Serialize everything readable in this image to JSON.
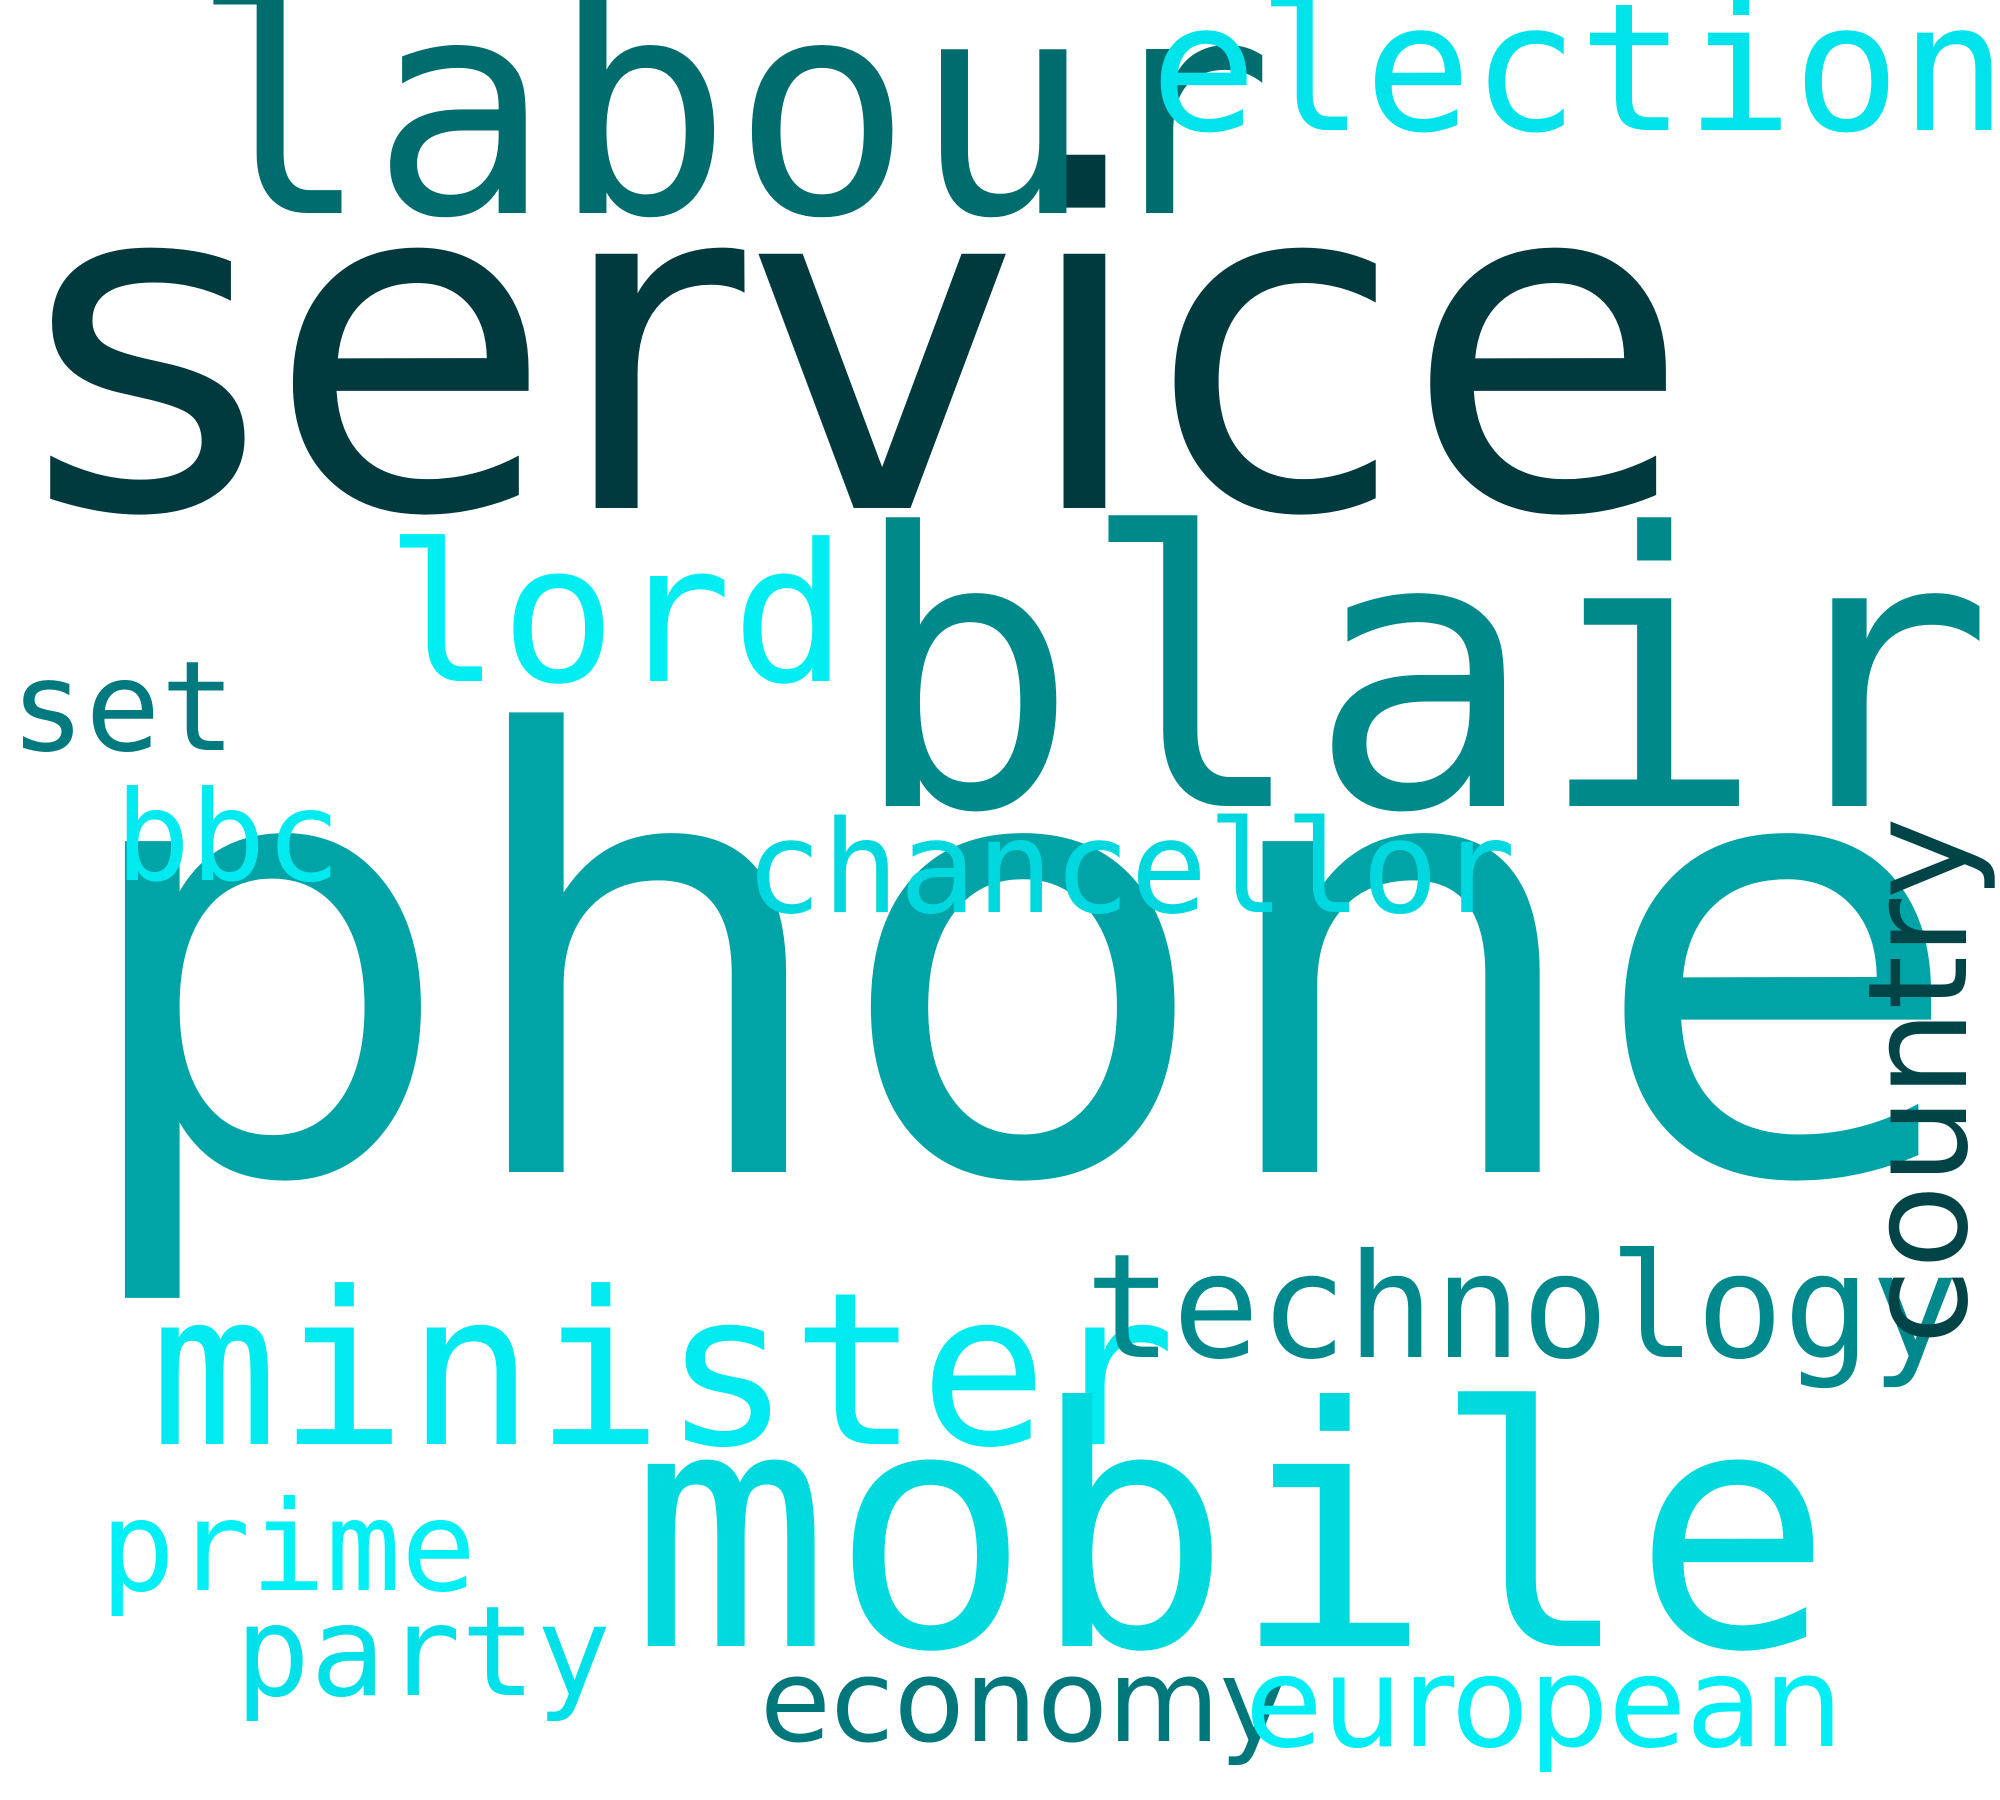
{
  "background": "#ffffff",
  "words": {
    "service": {
      "text": "service",
      "color": "#003a3e"
    },
    "phone": {
      "text": "phone",
      "color": "#00a3a6"
    },
    "blair": {
      "text": "blair",
      "color": "#00898a"
    },
    "labour": {
      "text": "labour",
      "color": "#006c6d"
    },
    "election": {
      "text": "election",
      "color": "#00e3ea"
    },
    "lord": {
      "text": "lord",
      "color": "#00eef2"
    },
    "set": {
      "text": "set",
      "color": "#007a7e"
    },
    "bbc": {
      "text": "bbc",
      "color": "#00eaf0"
    },
    "chancellor": {
      "text": "chancellor",
      "color": "#00d8e0"
    },
    "minister": {
      "text": "minister",
      "color": "#00eaf0"
    },
    "technology": {
      "text": "technology",
      "color": "#00898c"
    },
    "mobile": {
      "text": "mobile",
      "color": "#00dadf"
    },
    "prime": {
      "text": "prime",
      "color": "#00f0f5"
    },
    "party": {
      "text": "party",
      "color": "#00e0e8"
    },
    "economy": {
      "text": "economy",
      "color": "#00787b"
    },
    "european": {
      "text": "european",
      "color": "#00eef4"
    },
    "country": {
      "text": "country",
      "color": "#004448"
    }
  }
}
